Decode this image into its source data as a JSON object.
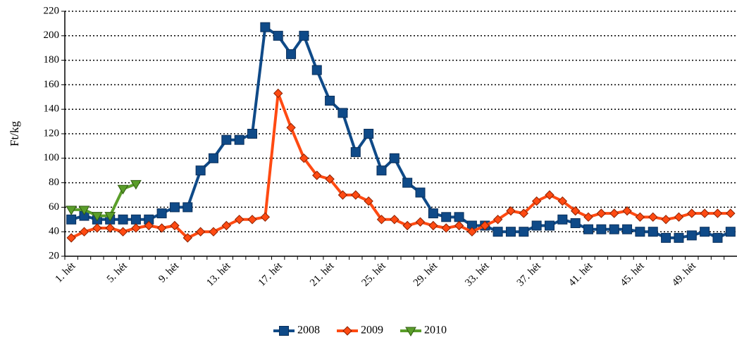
{
  "chart_data": {
    "type": "line",
    "y_label": "Ft/kg",
    "categories": [
      "1. hét",
      null,
      null,
      null,
      "5. hét",
      null,
      null,
      null,
      "9. hét",
      null,
      null,
      null,
      "13. hét",
      null,
      null,
      null,
      "17. hét",
      null,
      null,
      null,
      "21. hét",
      null,
      null,
      null,
      "25. hét",
      null,
      null,
      null,
      "29. hét",
      null,
      null,
      null,
      "33. hét",
      null,
      null,
      null,
      "37. hét",
      null,
      null,
      null,
      "41. hét",
      null,
      null,
      null,
      "45. hét",
      null,
      null,
      null,
      "49. hét",
      null,
      null,
      null
    ],
    "series": [
      {
        "name": "2008",
        "color": "#0f4a88",
        "marker": "square",
        "values": [
          50,
          53,
          50,
          50,
          50,
          50,
          50,
          55,
          60,
          60,
          90,
          100,
          115,
          115,
          120,
          207,
          200,
          185,
          200,
          172,
          147,
          137,
          105,
          120,
          90,
          100,
          80,
          72,
          55,
          52,
          52,
          45,
          45,
          40,
          40,
          40,
          45,
          45,
          50,
          47,
          42,
          42,
          42,
          42,
          40,
          40,
          35,
          35,
          37,
          40,
          35,
          40
        ]
      },
      {
        "name": "2009",
        "color": "#ff4a12",
        "marker": "diamond",
        "values": [
          35,
          40,
          43,
          43,
          40,
          43,
          45,
          43,
          45,
          35,
          40,
          40,
          45,
          50,
          50,
          52,
          153,
          125,
          100,
          86,
          83,
          70,
          70,
          65,
          50,
          50,
          45,
          48,
          45,
          43,
          45,
          40,
          45,
          50,
          57,
          55,
          65,
          70,
          65,
          57,
          52,
          55,
          55,
          57,
          52,
          52,
          50,
          52,
          55,
          55,
          55,
          55
        ]
      },
      {
        "name": "2010",
        "color": "#5a9e2a",
        "marker": "triangle-down",
        "values": [
          58,
          58,
          53,
          53,
          75,
          79,
          null,
          null,
          null,
          null,
          null,
          null,
          null,
          null,
          null,
          null,
          null,
          null,
          null,
          null,
          null,
          null,
          null,
          null,
          null,
          null,
          null,
          null,
          null,
          null,
          null,
          null,
          null,
          null,
          null,
          null,
          null,
          null,
          null,
          null,
          null,
          null,
          null,
          null,
          null,
          null,
          null,
          null,
          null,
          null,
          null,
          null
        ]
      }
    ],
    "ylim": [
      20,
      220
    ],
    "yticks": [
      20,
      40,
      60,
      80,
      100,
      120,
      140,
      160,
      180,
      200,
      220
    ],
    "grid": true,
    "legend": "bottom"
  }
}
